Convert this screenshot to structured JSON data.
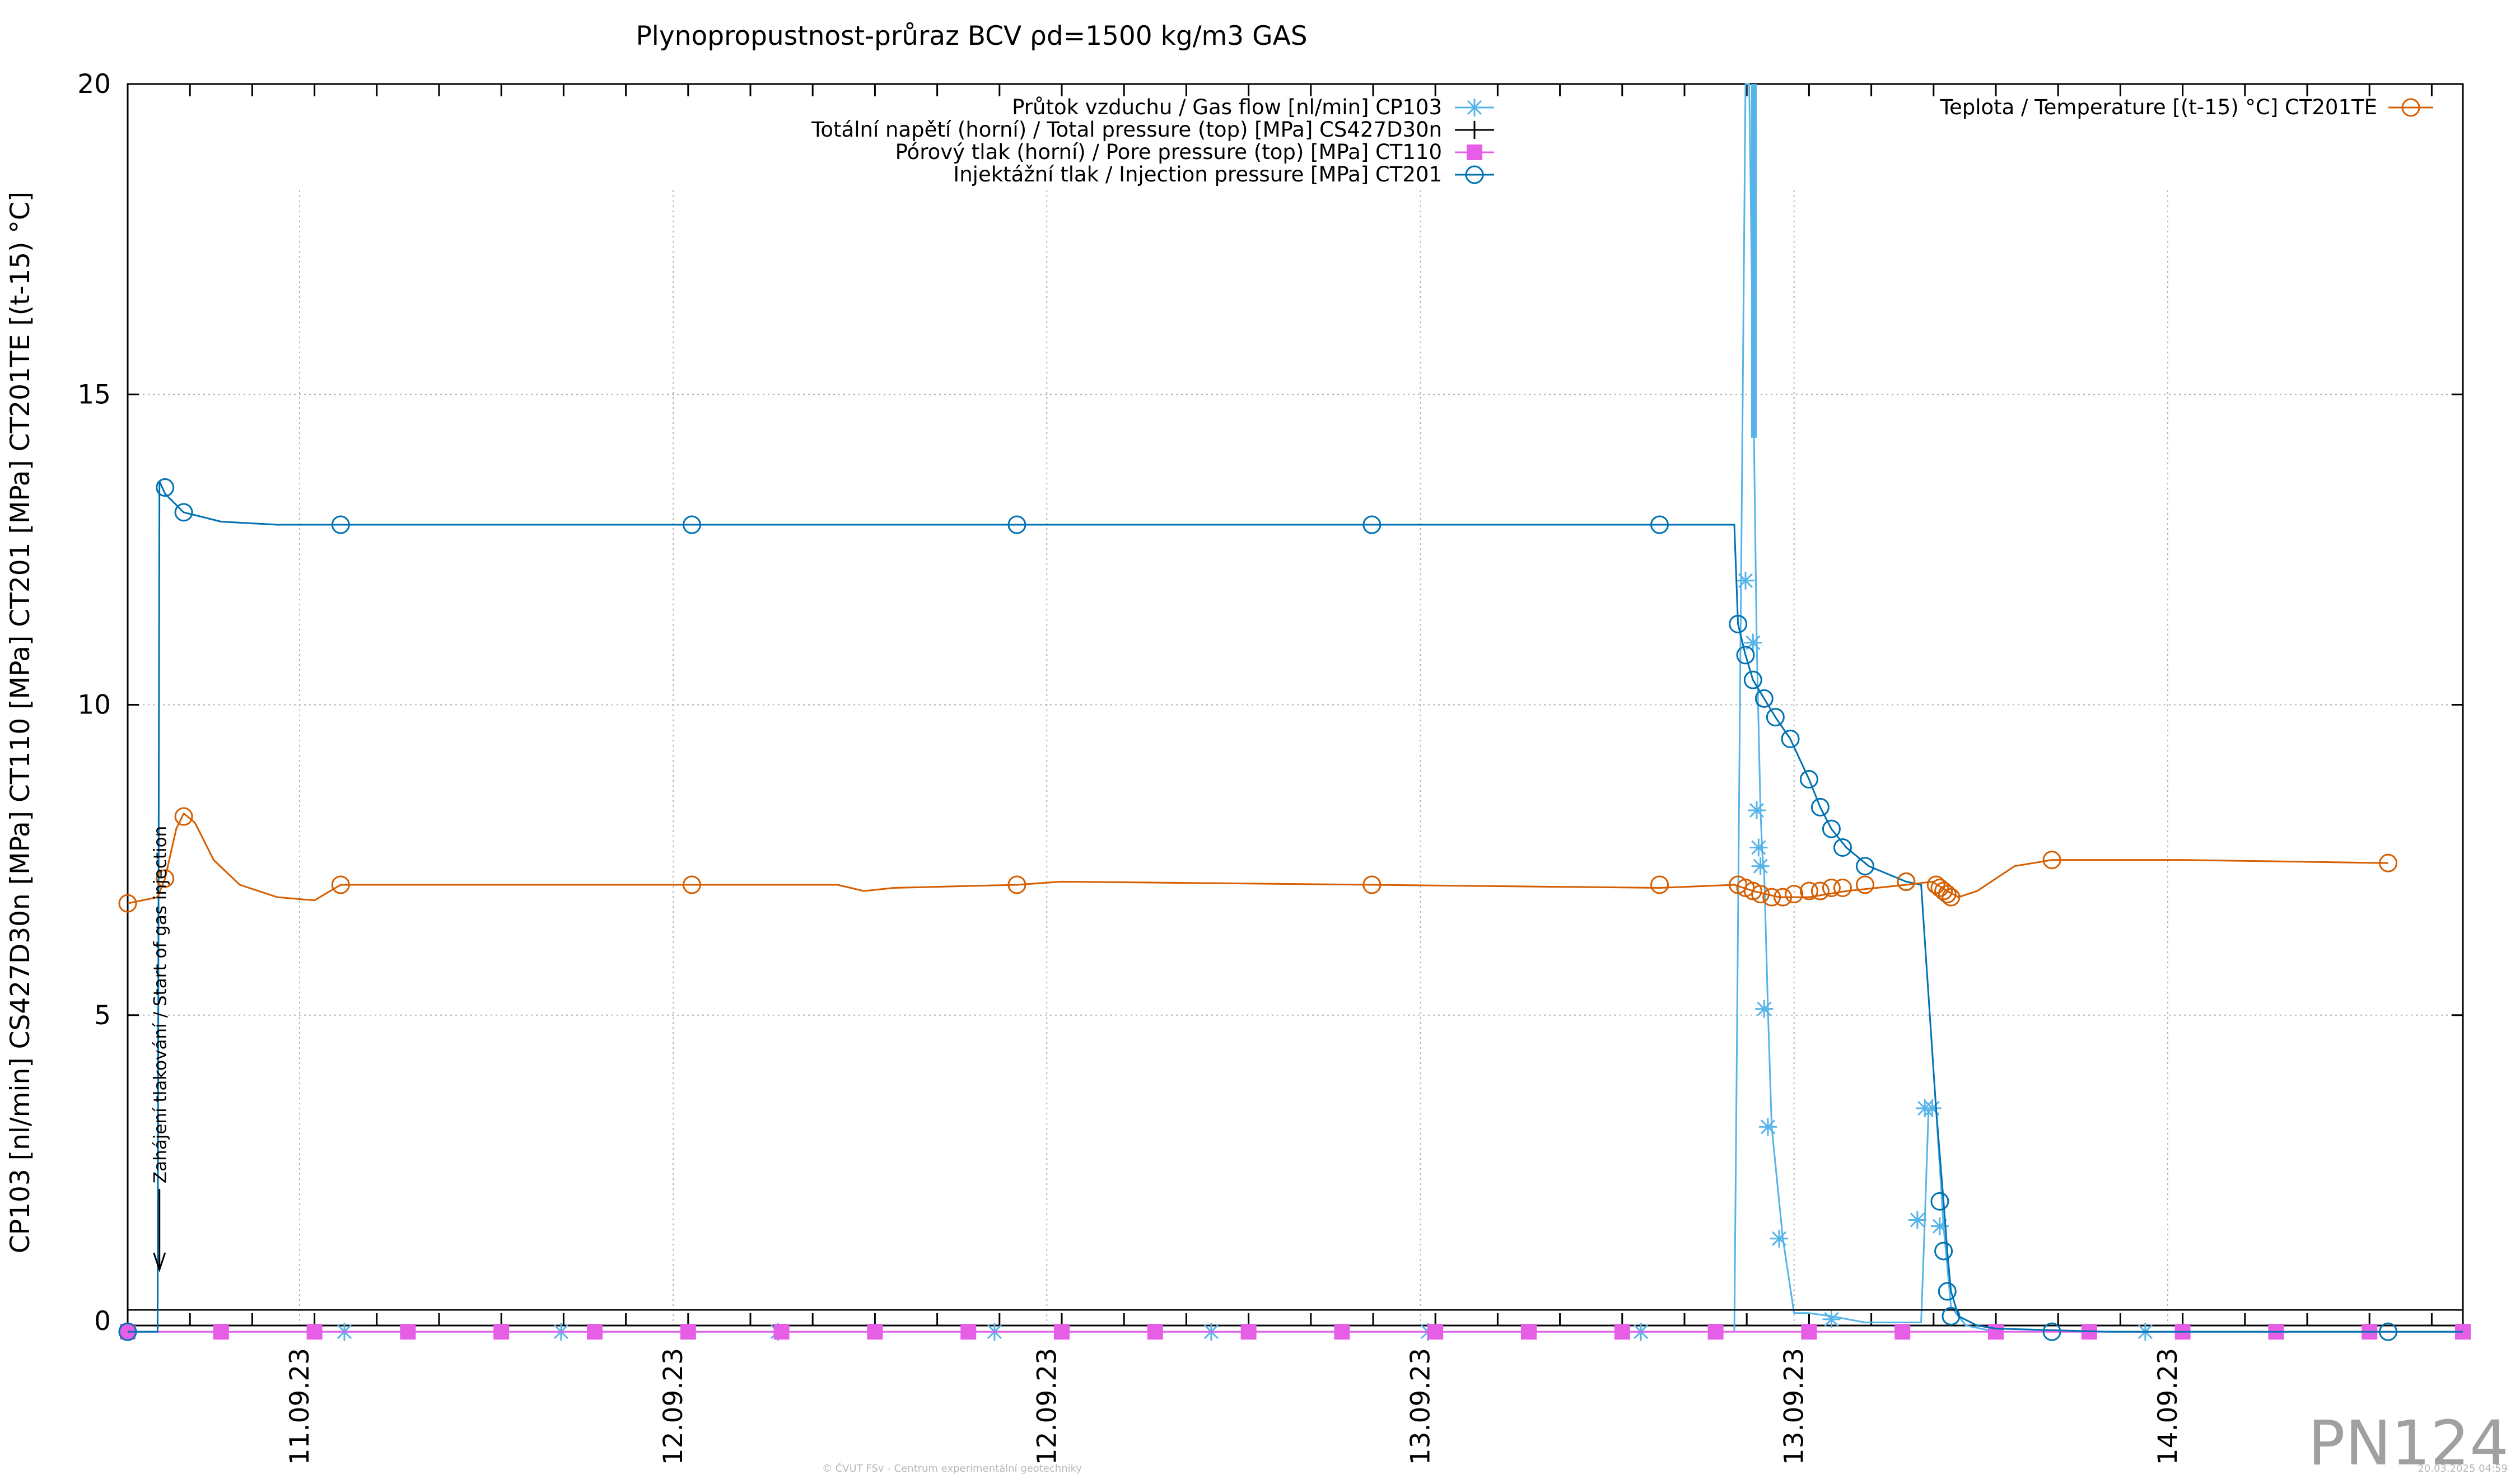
{
  "chart_data": {
    "type": "line",
    "title": "Plynopropustnost-průraz BCV ρd=1500 kg/m3 GAS",
    "ylabel": "CP103 [nl/min] CS427D30n [MPa] CT110 [MPa] CT201 [MPa] CT201TE [(t-15) °C]",
    "xlabel": "",
    "ylim": [
      0,
      20
    ],
    "xlim": [
      0,
      6.25
    ],
    "x_unit_note": "",
    "y_ticks": [
      "0",
      "5",
      "10",
      "15",
      "20"
    ],
    "x_ticks": [
      {
        "label": "11.09.23",
        "x": 0.46
      },
      {
        "label": "12.09.23",
        "x": 1.46
      },
      {
        "label": "12.09.23",
        "x": 2.46
      },
      {
        "label": "13.09.23",
        "x": 3.46
      },
      {
        "label": "13.09.23",
        "x": 4.46
      },
      {
        "label": "14.09.23",
        "x": 5.46
      }
    ],
    "grid": true,
    "legend_placement": "top-center",
    "series": [
      {
        "name": "Průtok vzduchu / Gas flow [nl/min] CP103",
        "color": "#56b4e9",
        "marker": "star",
        "points": [
          [
            0.0,
            -0.1
          ],
          [
            0.08,
            -0.1
          ],
          [
            0.09,
            -0.1
          ],
          [
            0.1,
            -0.1
          ],
          [
            0.58,
            -0.1
          ],
          [
            1.16,
            -0.1
          ],
          [
            1.74,
            -0.1
          ],
          [
            2.32,
            -0.1
          ],
          [
            2.9,
            -0.1
          ],
          [
            3.48,
            -0.1
          ],
          [
            4.05,
            -0.1
          ],
          [
            4.3,
            -0.1
          ],
          [
            4.33,
            20
          ],
          [
            4.34,
            20
          ],
          [
            4.36,
            11
          ],
          [
            4.37,
            8.3
          ],
          [
            4.375,
            7.6
          ],
          [
            4.38,
            7.3
          ],
          [
            4.39,
            5.1
          ],
          [
            4.4,
            3.2
          ],
          [
            4.43,
            1.4
          ],
          [
            4.46,
            0.2
          ],
          [
            4.5,
            0.2
          ],
          [
            4.56,
            0.15
          ],
          [
            4.65,
            0.05
          ],
          [
            4.76,
            0.05
          ],
          [
            4.8,
            0.05
          ],
          [
            4.81,
            1.7
          ],
          [
            4.82,
            3.5
          ],
          [
            4.84,
            3.5
          ],
          [
            4.86,
            1.6
          ],
          [
            4.88,
            0.3
          ],
          [
            4.92,
            0
          ],
          [
            5.0,
            -0.1
          ],
          [
            5.5,
            -0.1
          ],
          [
            6.25,
            -0.1
          ]
        ],
        "marker_points": [
          [
            0.0,
            -0.1
          ],
          [
            0.58,
            -0.1
          ],
          [
            1.16,
            -0.1
          ],
          [
            1.74,
            -0.1
          ],
          [
            2.32,
            -0.1
          ],
          [
            2.9,
            -0.1
          ],
          [
            3.48,
            -0.1
          ],
          [
            4.05,
            -0.1
          ],
          [
            4.33,
            12.0
          ],
          [
            4.35,
            11.0
          ],
          [
            4.36,
            8.3
          ],
          [
            4.365,
            7.7
          ],
          [
            4.37,
            7.4
          ],
          [
            4.38,
            5.1
          ],
          [
            4.39,
            3.2
          ],
          [
            4.42,
            1.4
          ],
          [
            4.56,
            0.1
          ],
          [
            4.79,
            1.7
          ],
          [
            4.81,
            3.5
          ],
          [
            4.83,
            3.5
          ],
          [
            4.85,
            1.6
          ],
          [
            5.4,
            -0.1
          ]
        ]
      },
      {
        "name": "Totální napětí (horní) / Total pressure (top) [MPa] CS427D30n",
        "color": "#000000",
        "marker": "plus",
        "points": [
          [
            0.0,
            0.25
          ],
          [
            6.25,
            0.25
          ]
        ],
        "marker_points": []
      },
      {
        "name": "Pórový tlak (horní) / Pore pressure (top) [MPa] CT110",
        "color": "#e55ee5",
        "marker": "square",
        "points": [
          [
            0.0,
            -0.1
          ],
          [
            6.25,
            -0.1
          ]
        ],
        "marker_points": [
          [
            0.0,
            -0.1
          ],
          [
            0.25,
            -0.1
          ],
          [
            0.5,
            -0.1
          ],
          [
            0.75,
            -0.1
          ],
          [
            1.0,
            -0.1
          ],
          [
            1.25,
            -0.1
          ],
          [
            1.5,
            -0.1
          ],
          [
            1.75,
            -0.1
          ],
          [
            2.0,
            -0.1
          ],
          [
            2.25,
            -0.1
          ],
          [
            2.5,
            -0.1
          ],
          [
            2.75,
            -0.1
          ],
          [
            3.0,
            -0.1
          ],
          [
            3.25,
            -0.1
          ],
          [
            3.5,
            -0.1
          ],
          [
            3.75,
            -0.1
          ],
          [
            4.0,
            -0.1
          ],
          [
            4.25,
            -0.1
          ],
          [
            4.5,
            -0.1
          ],
          [
            4.75,
            -0.1
          ],
          [
            5.0,
            -0.1
          ],
          [
            5.25,
            -0.1
          ],
          [
            5.5,
            -0.1
          ],
          [
            5.75,
            -0.1
          ],
          [
            6.0,
            -0.1
          ],
          [
            6.25,
            -0.1
          ]
        ]
      },
      {
        "name": "Injektážní tlak / Injection pressure [MPa] CT201",
        "color": "#0072b2",
        "marker": "circle",
        "points": [
          [
            0.0,
            -0.1
          ],
          [
            0.08,
            -0.1
          ],
          [
            0.085,
            13.6
          ],
          [
            0.1,
            13.4
          ],
          [
            0.15,
            13.1
          ],
          [
            0.25,
            12.95
          ],
          [
            0.4,
            12.9
          ],
          [
            0.57,
            12.9
          ],
          [
            1.0,
            12.9
          ],
          [
            1.5,
            12.9
          ],
          [
            2.38,
            12.9
          ],
          [
            3.0,
            12.9
          ],
          [
            3.33,
            12.9
          ],
          [
            4.1,
            12.9
          ],
          [
            4.3,
            12.9
          ],
          [
            4.31,
            11.3
          ],
          [
            4.33,
            10.8
          ],
          [
            4.35,
            10.4
          ],
          [
            4.38,
            10.1
          ],
          [
            4.41,
            9.8
          ],
          [
            4.45,
            9.45
          ],
          [
            4.5,
            8.8
          ],
          [
            4.53,
            8.35
          ],
          [
            4.56,
            8.0
          ],
          [
            4.6,
            7.7
          ],
          [
            4.66,
            7.4
          ],
          [
            4.76,
            7.15
          ],
          [
            4.8,
            7.1
          ],
          [
            4.81,
            6.2
          ],
          [
            4.84,
            3.5
          ],
          [
            4.86,
            2.0
          ],
          [
            4.87,
            1.2
          ],
          [
            4.88,
            0.55
          ],
          [
            4.9,
            0.15
          ],
          [
            4.95,
            0
          ],
          [
            5.0,
            -0.05
          ],
          [
            5.3,
            -0.1
          ],
          [
            6.25,
            -0.1
          ]
        ],
        "marker_points": [
          [
            0.0,
            -0.1
          ],
          [
            0.1,
            13.5
          ],
          [
            0.15,
            13.1
          ],
          [
            0.57,
            12.9
          ],
          [
            1.51,
            12.9
          ],
          [
            2.38,
            12.9
          ],
          [
            3.33,
            12.9
          ],
          [
            4.1,
            12.9
          ],
          [
            4.31,
            11.3
          ],
          [
            4.33,
            10.8
          ],
          [
            4.35,
            10.4
          ],
          [
            4.38,
            10.1
          ],
          [
            4.41,
            9.8
          ],
          [
            4.45,
            9.45
          ],
          [
            4.5,
            8.8
          ],
          [
            4.53,
            8.35
          ],
          [
            4.56,
            8.0
          ],
          [
            4.59,
            7.7
          ],
          [
            4.65,
            7.4
          ],
          [
            4.76,
            7.15
          ],
          [
            4.85,
            2.0
          ],
          [
            4.86,
            1.2
          ],
          [
            4.87,
            0.55
          ],
          [
            4.88,
            0.15
          ],
          [
            5.15,
            -0.1
          ],
          [
            6.05,
            -0.1
          ]
        ]
      },
      {
        "name": "Teplota / Temperature [(t-15) °C] CT201TE",
        "color": "#d55e00",
        "marker": "circle",
        "points": [
          [
            0.0,
            6.8
          ],
          [
            0.08,
            6.9
          ],
          [
            0.1,
            7.2
          ],
          [
            0.13,
            8.0
          ],
          [
            0.15,
            8.25
          ],
          [
            0.18,
            8.1
          ],
          [
            0.23,
            7.5
          ],
          [
            0.3,
            7.1
          ],
          [
            0.4,
            6.9
          ],
          [
            0.5,
            6.85
          ],
          [
            0.57,
            7.1
          ],
          [
            1.0,
            7.1
          ],
          [
            1.51,
            7.1
          ],
          [
            1.9,
            7.1
          ],
          [
            1.97,
            7.0
          ],
          [
            2.05,
            7.05
          ],
          [
            2.38,
            7.1
          ],
          [
            2.5,
            7.15
          ],
          [
            3.33,
            7.1
          ],
          [
            4.1,
            7.05
          ],
          [
            4.3,
            7.1
          ],
          [
            4.35,
            7.0
          ],
          [
            4.42,
            6.9
          ],
          [
            4.5,
            6.9
          ],
          [
            4.6,
            7.0
          ],
          [
            4.76,
            7.1
          ],
          [
            4.83,
            7.15
          ],
          [
            4.87,
            7.0
          ],
          [
            4.9,
            6.9
          ],
          [
            4.95,
            7.0
          ],
          [
            5.05,
            7.4
          ],
          [
            5.15,
            7.5
          ],
          [
            5.5,
            7.5
          ],
          [
            6.05,
            7.45
          ]
        ],
        "marker_points": [
          [
            0.0,
            6.8
          ],
          [
            0.1,
            7.2
          ],
          [
            0.15,
            8.2
          ],
          [
            0.57,
            7.1
          ],
          [
            1.51,
            7.1
          ],
          [
            2.38,
            7.1
          ],
          [
            3.33,
            7.1
          ],
          [
            4.1,
            7.1
          ],
          [
            4.31,
            7.1
          ],
          [
            4.33,
            7.05
          ],
          [
            4.35,
            7.0
          ],
          [
            4.37,
            6.95
          ],
          [
            4.4,
            6.9
          ],
          [
            4.43,
            6.9
          ],
          [
            4.46,
            6.95
          ],
          [
            4.5,
            7.0
          ],
          [
            4.53,
            7.0
          ],
          [
            4.56,
            7.05
          ],
          [
            4.59,
            7.05
          ],
          [
            4.65,
            7.1
          ],
          [
            4.76,
            7.15
          ],
          [
            4.84,
            7.1
          ],
          [
            4.85,
            7.05
          ],
          [
            4.86,
            7.0
          ],
          [
            4.87,
            6.95
          ],
          [
            4.88,
            6.9
          ],
          [
            5.15,
            7.5
          ],
          [
            6.05,
            7.45
          ]
        ]
      }
    ],
    "flow_spike": {
      "x": [
        4.345,
        4.36
      ],
      "y": [
        20,
        14.3
      ],
      "color": "#56b4e9"
    },
    "annotation": {
      "text": "Zahájení tlakování / Start of gas injection",
      "x": 0.085,
      "y_from": 2.2,
      "y_to": 0.9
    }
  },
  "watermark": "PN124",
  "footer_center": "© ČVUT FSv - Centrum experimentální geotechniky",
  "footer_right": "20.03.2025 04:59"
}
